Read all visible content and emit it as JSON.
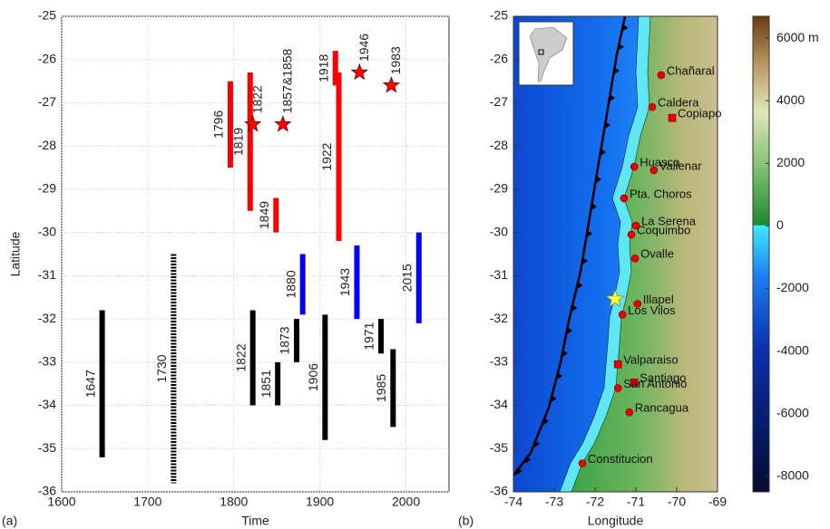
{
  "chart_data": [
    {
      "type": "rupture",
      "panel": "(a)",
      "xlabel": "Time",
      "ylabel": "Latitude",
      "xlim": [
        1600,
        2050
      ],
      "xticks": [
        1600,
        1700,
        1800,
        1900,
        2000
      ],
      "ylim": [
        -36,
        -25
      ],
      "yticks": [
        -36,
        -35,
        -34,
        -33,
        -32,
        -31,
        -30,
        -29,
        -28,
        -27,
        -26,
        -25
      ],
      "grid": true,
      "ruptures": [
        {
          "label": "1796",
          "year": 1796,
          "north": -26.5,
          "south": -28.5,
          "color": "#ff0000"
        },
        {
          "label": "1819",
          "year": 1819,
          "north": -26.3,
          "south": -29.5,
          "color": "#ff0000"
        },
        {
          "label": "1849",
          "year": 1849,
          "north": -29.2,
          "south": -30.0,
          "color": "#ff0000"
        },
        {
          "label": "1918",
          "year": 1918,
          "north": -25.8,
          "south": -26.6,
          "color": "#ff0000"
        },
        {
          "label": "1922",
          "year": 1922,
          "north": -26.3,
          "south": -30.2,
          "color": "#ff0000"
        },
        {
          "label": "1880",
          "year": 1880,
          "north": -30.5,
          "south": -31.9,
          "color": "#0000ff"
        },
        {
          "label": "1943",
          "year": 1943,
          "north": -30.3,
          "south": -32.0,
          "color": "#0000ff"
        },
        {
          "label": "2015",
          "year": 2015,
          "north": -30.0,
          "south": -32.1,
          "color": "#0000ff"
        },
        {
          "label": "1647",
          "year": 1647,
          "north": -31.8,
          "south": -35.2,
          "color": "#000000"
        },
        {
          "label": "1730",
          "year": 1730,
          "north": -30.5,
          "south": -35.8,
          "color": "#000000",
          "style": "dashed"
        },
        {
          "label": "1822",
          "year": 1822,
          "north": -31.8,
          "south": -34.0,
          "color": "#000000"
        },
        {
          "label": "1851",
          "year": 1851,
          "north": -33.0,
          "south": -34.0,
          "color": "#000000"
        },
        {
          "label": "1873",
          "year": 1873,
          "north": -32.0,
          "south": -33.0,
          "color": "#000000"
        },
        {
          "label": "1906",
          "year": 1906,
          "north": -31.9,
          "south": -34.8,
          "color": "#000000"
        },
        {
          "label": "1971",
          "year": 1971,
          "north": -32.0,
          "south": -32.8,
          "color": "#000000"
        },
        {
          "label": "1985",
          "year": 1985,
          "north": -32.7,
          "south": -34.5,
          "color": "#000000"
        }
      ],
      "stars": [
        {
          "label": "1822",
          "year": 1822,
          "lat": -27.5,
          "color": "#ff0000"
        },
        {
          "label": "1857&1858",
          "year": 1857,
          "lat": -27.5,
          "color": "#ff0000"
        },
        {
          "label": "1946",
          "year": 1946,
          "lat": -26.3,
          "color": "#ff0000"
        },
        {
          "label": "1983",
          "year": 1983,
          "lat": -26.6,
          "color": "#ff0000"
        }
      ]
    },
    {
      "type": "map",
      "panel": "(b)",
      "xlabel": "Longitude",
      "xlim": [
        -74,
        -69
      ],
      "xticks": [
        -74,
        -73,
        -72,
        -71,
        -70,
        -69
      ],
      "ylim": [
        -36,
        -25
      ],
      "yticks": [
        -36,
        -35,
        -34,
        -33,
        -32,
        -31,
        -30,
        -29,
        -28,
        -27,
        -26,
        -25
      ],
      "colorbar_lim": [
        -8500,
        6700
      ],
      "colorbar_ticks": [
        -8000,
        -6000,
        -4000,
        -2000,
        0,
        2000,
        4000,
        {
          "value": 6000,
          "label": "6000 m"
        }
      ],
      "cities": [
        {
          "name": "Chañaral",
          "lon": -70.38,
          "lat": -26.36,
          "marker": "circle"
        },
        {
          "name": "Caldera",
          "lon": -70.6,
          "lat": -27.1,
          "marker": "circle"
        },
        {
          "name": "Copiapo",
          "lon": -70.11,
          "lat": -27.35,
          "marker": "square"
        },
        {
          "name": "Huasco",
          "lon": -71.04,
          "lat": -28.48,
          "marker": "circle"
        },
        {
          "name": "Vallenar",
          "lon": -70.56,
          "lat": -28.56,
          "marker": "circle"
        },
        {
          "name": "Pta. Choros",
          "lon": -71.29,
          "lat": -29.21,
          "marker": "circle"
        },
        {
          "name": "La Serena",
          "lon": -71.0,
          "lat": -29.84,
          "marker": "circle"
        },
        {
          "name": "Coquimbo",
          "lon": -71.11,
          "lat": -30.05,
          "marker": "circle"
        },
        {
          "name": "Ovalle",
          "lon": -71.02,
          "lat": -30.6,
          "marker": "circle"
        },
        {
          "name": "Illapel",
          "lon": -70.96,
          "lat": -31.65,
          "marker": "circle"
        },
        {
          "name": "Los Vilos",
          "lon": -71.33,
          "lat": -31.9,
          "marker": "circle"
        },
        {
          "name": "Valparaiso",
          "lon": -71.44,
          "lat": -33.05,
          "marker": "square"
        },
        {
          "name": "Santiago",
          "lon": -71.04,
          "lat": -33.47,
          "marker": "square"
        },
        {
          "name": "San Antonio",
          "lon": -71.44,
          "lat": -33.6,
          "marker": "circle"
        },
        {
          "name": "Rancagua",
          "lon": -71.16,
          "lat": -34.16,
          "marker": "circle"
        },
        {
          "name": "Constitucion",
          "lon": -72.31,
          "lat": -35.34,
          "marker": "circle"
        }
      ],
      "epicenter": {
        "lon": -71.51,
        "lat": -31.54,
        "color": "#ffff33"
      }
    }
  ]
}
